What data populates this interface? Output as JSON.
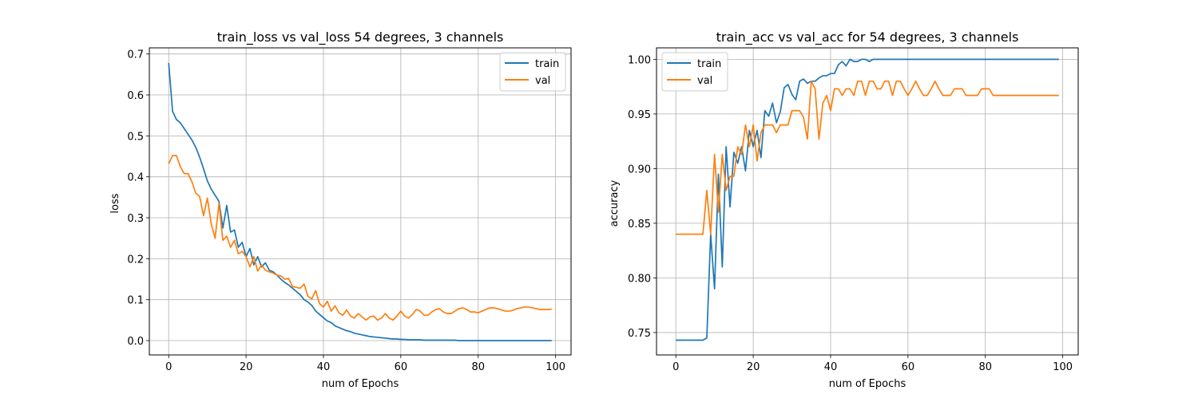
{
  "chart_data": [
    {
      "type": "line",
      "title": "train_loss vs val_loss 54 degrees, 3 channels",
      "xlabel": "num of Epochs",
      "ylabel": "loss",
      "xlim": [
        -5,
        104
      ],
      "ylim": [
        -0.035,
        0.715
      ],
      "xticks": [
        0,
        20,
        40,
        60,
        80,
        100
      ],
      "xtick_labels": [
        "0",
        "20",
        "40",
        "60",
        "80",
        "100"
      ],
      "yticks": [
        0.0,
        0.1,
        0.2,
        0.3,
        0.4,
        0.5,
        0.6,
        0.7
      ],
      "ytick_labels": [
        "0.0",
        "0.1",
        "0.2",
        "0.3",
        "0.4",
        "0.5",
        "0.6",
        "0.7"
      ],
      "grid": true,
      "legend_position": "upper right",
      "series": [
        {
          "name": "train",
          "color": "#1f77b4",
          "values": [
            0.678,
            0.56,
            0.54,
            0.532,
            0.518,
            0.504,
            0.49,
            0.472,
            0.448,
            0.42,
            0.39,
            0.37,
            0.355,
            0.34,
            0.275,
            0.33,
            0.265,
            0.27,
            0.228,
            0.24,
            0.205,
            0.225,
            0.185,
            0.205,
            0.18,
            0.19,
            0.172,
            0.168,
            0.16,
            0.15,
            0.142,
            0.136,
            0.128,
            0.12,
            0.112,
            0.1,
            0.094,
            0.086,
            0.072,
            0.064,
            0.056,
            0.048,
            0.044,
            0.036,
            0.032,
            0.028,
            0.024,
            0.022,
            0.018,
            0.016,
            0.014,
            0.012,
            0.01,
            0.009,
            0.008,
            0.007,
            0.006,
            0.005,
            0.004,
            0.004,
            0.003,
            0.003,
            0.002,
            0.002,
            0.002,
            0.002,
            0.001,
            0.001,
            0.001,
            0.001,
            0.001,
            0.001,
            0.001,
            0.001,
            0.001,
            0.0,
            0.0,
            0.0,
            0.0,
            0.0,
            0.0,
            0.0,
            0.0,
            0.0,
            0.0,
            0.0,
            0.0,
            0.0,
            0.0,
            0.0,
            0.0,
            0.0,
            0.0,
            0.0,
            0.0,
            0.0,
            0.0,
            0.0,
            0.0,
            0.0
          ]
        },
        {
          "name": "val",
          "color": "#ff7f0e",
          "values": [
            0.432,
            0.452,
            0.452,
            0.425,
            0.408,
            0.408,
            0.388,
            0.36,
            0.352,
            0.305,
            0.348,
            0.285,
            0.25,
            0.335,
            0.245,
            0.255,
            0.228,
            0.245,
            0.212,
            0.218,
            0.205,
            0.18,
            0.205,
            0.17,
            0.185,
            0.172,
            0.168,
            0.165,
            0.16,
            0.158,
            0.15,
            0.152,
            0.132,
            0.13,
            0.128,
            0.138,
            0.108,
            0.102,
            0.122,
            0.09,
            0.082,
            0.096,
            0.072,
            0.085,
            0.068,
            0.062,
            0.075,
            0.06,
            0.055,
            0.066,
            0.058,
            0.05,
            0.058,
            0.06,
            0.05,
            0.055,
            0.066,
            0.055,
            0.05,
            0.06,
            0.072,
            0.06,
            0.055,
            0.064,
            0.076,
            0.072,
            0.062,
            0.062,
            0.07,
            0.076,
            0.078,
            0.07,
            0.066,
            0.066,
            0.072,
            0.078,
            0.08,
            0.076,
            0.07,
            0.07,
            0.068,
            0.072,
            0.076,
            0.08,
            0.08,
            0.078,
            0.075,
            0.072,
            0.072,
            0.074,
            0.078,
            0.08,
            0.082,
            0.082,
            0.08,
            0.078,
            0.076,
            0.076,
            0.076,
            0.077
          ]
        }
      ]
    },
    {
      "type": "line",
      "title": "train_acc vs val_acc for 54 degrees, 3 channels",
      "xlabel": "num of Epochs",
      "ylabel": "accuracy",
      "xlim": [
        -5,
        104
      ],
      "ylim": [
        0.7295,
        1.0105
      ],
      "xticks": [
        0,
        20,
        40,
        60,
        80,
        100
      ],
      "xtick_labels": [
        "0",
        "20",
        "40",
        "60",
        "80",
        "100"
      ],
      "yticks": [
        0.75,
        0.8,
        0.85,
        0.9,
        0.95,
        1.0
      ],
      "ytick_labels": [
        "0.75",
        "0.80",
        "0.85",
        "0.90",
        "0.95",
        "1.00"
      ],
      "grid": true,
      "legend_position": "upper left",
      "series": [
        {
          "name": "train",
          "color": "#1f77b4",
          "values": [
            0.743,
            0.743,
            0.743,
            0.743,
            0.743,
            0.743,
            0.743,
            0.743,
            0.745,
            0.84,
            0.79,
            0.895,
            0.81,
            0.92,
            0.865,
            0.915,
            0.905,
            0.92,
            0.898,
            0.935,
            0.92,
            0.935,
            0.91,
            0.953,
            0.948,
            0.96,
            0.942,
            0.952,
            0.974,
            0.977,
            0.968,
            0.963,
            0.98,
            0.982,
            0.978,
            0.98,
            0.98,
            0.983,
            0.985,
            0.985,
            0.987,
            0.987,
            0.995,
            0.998,
            0.994,
            1.0,
            0.998,
            0.998,
            1.0,
            1.0,
            0.998,
            1.0,
            1.0,
            1.0,
            1.0,
            1.0,
            1.0,
            1.0,
            1.0,
            1.0,
            1.0,
            1.0,
            1.0,
            1.0,
            1.0,
            1.0,
            1.0,
            1.0,
            1.0,
            1.0,
            1.0,
            1.0,
            1.0,
            1.0,
            1.0,
            1.0,
            1.0,
            1.0,
            1.0,
            1.0,
            1.0,
            1.0,
            1.0,
            1.0,
            1.0,
            1.0,
            1.0,
            1.0,
            1.0,
            1.0,
            1.0,
            1.0,
            1.0,
            1.0,
            1.0,
            1.0,
            1.0,
            1.0,
            1.0,
            1.0
          ]
        },
        {
          "name": "val",
          "color": "#ff7f0e",
          "values": [
            0.84,
            0.84,
            0.84,
            0.84,
            0.84,
            0.84,
            0.84,
            0.84,
            0.88,
            0.84,
            0.913,
            0.86,
            0.913,
            0.88,
            0.893,
            0.893,
            0.92,
            0.913,
            0.94,
            0.92,
            0.94,
            0.907,
            0.933,
            0.94,
            0.94,
            0.94,
            0.933,
            0.94,
            0.94,
            0.94,
            0.953,
            0.953,
            0.953,
            0.947,
            0.927,
            0.98,
            0.973,
            0.927,
            0.96,
            0.967,
            0.953,
            0.973,
            0.973,
            0.967,
            0.973,
            0.973,
            0.967,
            0.98,
            0.98,
            0.967,
            0.98,
            0.98,
            0.973,
            0.973,
            0.98,
            0.98,
            0.967,
            0.98,
            0.98,
            0.973,
            0.967,
            0.973,
            0.98,
            0.973,
            0.967,
            0.967,
            0.973,
            0.98,
            0.973,
            0.967,
            0.967,
            0.967,
            0.973,
            0.973,
            0.973,
            0.967,
            0.967,
            0.967,
            0.967,
            0.973,
            0.973,
            0.973,
            0.967,
            0.967,
            0.967,
            0.967,
            0.967,
            0.967,
            0.967,
            0.967,
            0.967,
            0.967,
            0.967,
            0.967,
            0.967,
            0.967,
            0.967,
            0.967,
            0.967,
            0.967
          ]
        }
      ]
    }
  ]
}
